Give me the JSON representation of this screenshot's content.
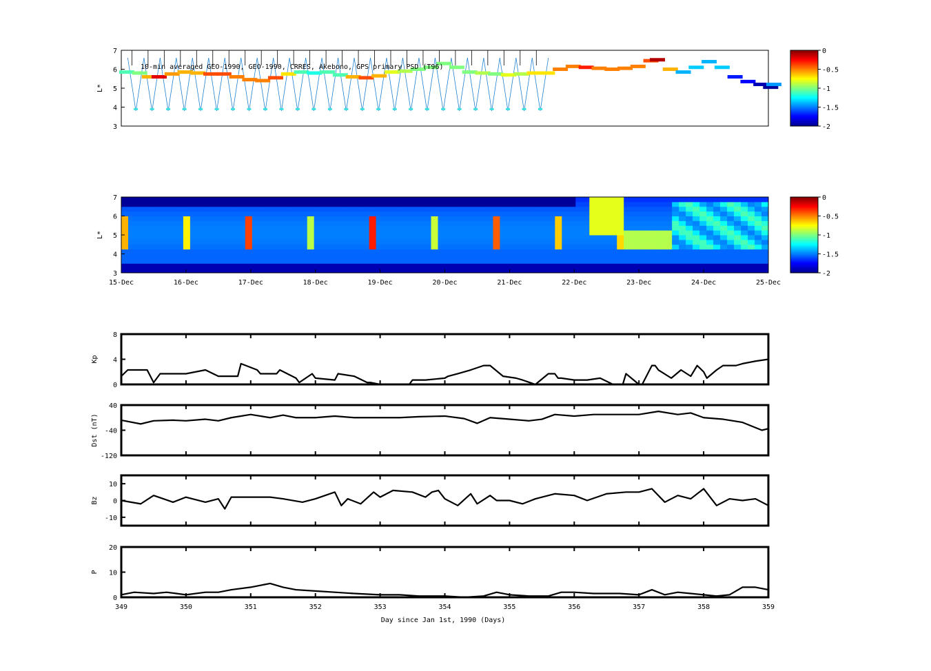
{
  "chart_data": [
    {
      "type": "scatter",
      "panel": "psd-observations",
      "title": "10-min averaged GEO-1990, GEO-1990, CRRES, Akebono, GPS  primary PSD (T96)",
      "ylabel": "L*",
      "ylim": [
        3,
        7
      ],
      "yticks": [
        3,
        4,
        5,
        6,
        7
      ],
      "xlim": [
        349,
        359
      ],
      "colorbar": {
        "ticks": [
          "0",
          "-0.5",
          "-1",
          "-1.5",
          "-2"
        ],
        "range": [
          -2,
          0
        ],
        "colormap": "jet"
      },
      "series": [
        {
          "points": [
            [
              349.0,
              5.85,
              -1.1
            ],
            [
              349.2,
              5.8,
              -1.0
            ],
            [
              349.35,
              5.6,
              -0.6
            ],
            [
              349.5,
              5.6,
              -0.2
            ],
            [
              349.7,
              5.75,
              -0.55
            ],
            [
              349.9,
              5.85,
              -0.6
            ],
            [
              350.1,
              5.8,
              -0.6
            ],
            [
              350.3,
              5.75,
              -0.4
            ],
            [
              350.5,
              5.75,
              -0.4
            ],
            [
              350.7,
              5.6,
              -0.5
            ],
            [
              350.9,
              5.45,
              -0.5
            ],
            [
              351.1,
              5.4,
              -0.5
            ],
            [
              351.3,
              5.55,
              -0.4
            ],
            [
              351.5,
              5.75,
              -0.7
            ],
            [
              351.7,
              5.85,
              -1.1
            ],
            [
              351.9,
              5.8,
              -1.2
            ],
            [
              352.1,
              5.85,
              -1.1
            ],
            [
              352.3,
              5.7,
              -1.1
            ],
            [
              352.5,
              5.6,
              -0.6
            ],
            [
              352.7,
              5.55,
              -0.4
            ],
            [
              352.9,
              5.65,
              -0.6
            ],
            [
              353.1,
              5.85,
              -0.8
            ],
            [
              353.3,
              5.9,
              -0.9
            ],
            [
              353.5,
              6.0,
              -1.0
            ],
            [
              353.7,
              6.1,
              -1.0
            ],
            [
              353.9,
              6.3,
              -1.0
            ],
            [
              354.1,
              6.1,
              -1.0
            ],
            [
              354.3,
              5.85,
              -1.0
            ],
            [
              354.5,
              5.8,
              -0.9
            ],
            [
              354.7,
              5.75,
              -1.0
            ],
            [
              354.9,
              5.7,
              -0.8
            ],
            [
              355.1,
              5.75,
              -0.9
            ],
            [
              355.3,
              5.8,
              -0.7
            ],
            [
              355.5,
              5.8,
              -0.7
            ],
            [
              355.7,
              6.0,
              -0.5
            ],
            [
              355.9,
              6.15,
              -0.5
            ],
            [
              356.1,
              6.1,
              -0.3
            ],
            [
              356.3,
              6.05,
              -0.5
            ],
            [
              356.5,
              6.0,
              -0.5
            ],
            [
              356.7,
              6.05,
              -0.5
            ],
            [
              356.9,
              6.15,
              -0.5
            ],
            [
              357.1,
              6.45,
              -0.4
            ],
            [
              357.2,
              6.5,
              -0.1
            ],
            [
              357.4,
              6.0,
              -0.6
            ],
            [
              357.6,
              5.85,
              -1.4
            ],
            [
              357.8,
              6.1,
              -1.35
            ],
            [
              358.0,
              6.4,
              -1.4
            ],
            [
              358.2,
              6.1,
              -1.35
            ],
            [
              358.4,
              5.6,
              -1.7
            ],
            [
              358.6,
              5.35,
              -1.75
            ],
            [
              358.8,
              5.2,
              -1.9
            ],
            [
              358.95,
              5.05,
              -1.95
            ],
            [
              359.0,
              5.2,
              -1.45
            ]
          ]
        }
      ]
    },
    {
      "type": "heatmap",
      "panel": "psd-reanalysis",
      "ylabel": "L*",
      "ylim": [
        3,
        7
      ],
      "yticks": [
        3,
        4,
        5,
        6,
        7
      ],
      "xtick_labels": [
        "15-Dec",
        "16-Dec",
        "17-Dec",
        "18-Dec",
        "19-Dec",
        "20-Dec",
        "21-Dec",
        "22-Dec",
        "23-Dec",
        "24-Dec",
        "25-Dec"
      ],
      "colorbar": {
        "ticks": [
          "0",
          "-0.5",
          "-1",
          "-1.5",
          "-2"
        ],
        "range": [
          -2,
          0
        ],
        "colormap": "jet"
      }
    },
    {
      "type": "line",
      "panel": "kp",
      "ylabel": "Kp",
      "ylim": [
        0,
        8
      ],
      "yticks": [
        0,
        4,
        8
      ],
      "xlim": [
        349,
        359
      ],
      "series": [
        {
          "color": "#000000",
          "x": [
            349.0,
            349.1,
            349.2,
            349.4,
            349.45,
            349.5,
            349.55,
            349.6,
            349.95,
            350.0,
            350.3,
            350.5,
            350.8,
            350.85,
            351.1,
            351.15,
            351.4,
            351.45,
            351.7,
            351.75,
            351.95,
            352.0,
            352.3,
            352.35,
            352.6,
            352.8,
            352.85,
            353.0,
            353.1,
            353.2,
            353.45,
            353.5,
            353.7,
            354.0,
            354.05,
            354.2,
            354.4,
            354.6,
            354.7,
            354.9,
            355.1,
            355.2,
            355.4,
            355.6,
            355.7,
            355.75,
            355.8,
            356.0,
            356.2,
            356.4,
            356.6,
            356.7,
            356.75,
            356.8,
            357.0,
            357.05,
            357.2,
            357.25,
            357.3,
            357.5,
            357.65,
            357.8,
            357.9,
            358.0,
            358.05,
            358.2,
            358.3,
            358.5,
            358.6,
            358.8,
            359.0
          ],
          "y": [
            1.3,
            2.3,
            2.3,
            2.3,
            1.3,
            0.3,
            1.0,
            1.7,
            1.7,
            1.7,
            2.3,
            1.3,
            1.3,
            3.3,
            2.3,
            1.7,
            1.7,
            2.3,
            1.0,
            0.3,
            1.7,
            1.0,
            0.7,
            1.7,
            1.3,
            0.3,
            0.3,
            0.0,
            0.0,
            0.0,
            0.0,
            0.7,
            0.7,
            1.0,
            1.3,
            1.7,
            2.3,
            3.0,
            3.0,
            1.3,
            1.0,
            0.7,
            0.0,
            1.7,
            1.7,
            1.0,
            1.0,
            0.7,
            0.7,
            1.0,
            0.0,
            0.0,
            0.0,
            1.7,
            0.0,
            0.0,
            3.0,
            3.0,
            2.3,
            1.0,
            2.3,
            1.3,
            3.0,
            2.0,
            1.0,
            2.3,
            3.0,
            3.0,
            3.3,
            3.7,
            4.0
          ]
        }
      ]
    },
    {
      "type": "line",
      "panel": "dst",
      "ylabel": "Dst (nT)",
      "ylim": [
        -120,
        40
      ],
      "yticks": [
        -120,
        -40,
        40
      ],
      "xlim": [
        349,
        359
      ],
      "series": [
        {
          "color": "#000000",
          "x": [
            349.0,
            349.3,
            349.5,
            349.8,
            350.0,
            350.3,
            350.5,
            350.7,
            351.0,
            351.3,
            351.5,
            351.7,
            352.0,
            352.3,
            352.6,
            353.0,
            353.3,
            353.6,
            354.0,
            354.3,
            354.5,
            354.7,
            355.0,
            355.3,
            355.5,
            355.7,
            356.0,
            356.3,
            356.6,
            357.0,
            357.3,
            357.6,
            357.8,
            358.0,
            358.3,
            358.6,
            358.9,
            359.0
          ],
          "y": [
            -8,
            -20,
            -10,
            -8,
            -10,
            -5,
            -10,
            0,
            10,
            0,
            8,
            0,
            0,
            5,
            0,
            0,
            0,
            3,
            5,
            -3,
            -18,
            0,
            -5,
            -10,
            -5,
            10,
            5,
            10,
            10,
            10,
            20,
            10,
            15,
            0,
            -5,
            -15,
            -40,
            -35
          ]
        }
      ]
    },
    {
      "type": "line",
      "panel": "bz",
      "ylabel": "Bz",
      "ylim": [
        -15,
        15
      ],
      "yticks": [
        -10,
        0,
        10
      ],
      "xlim": [
        349,
        359
      ],
      "series": [
        {
          "color": "#000000",
          "x": [
            349.0,
            349.3,
            349.5,
            349.8,
            350.0,
            350.3,
            350.5,
            350.6,
            350.7,
            350.8,
            351.0,
            351.3,
            351.5,
            351.8,
            352.0,
            352.3,
            352.4,
            352.5,
            352.7,
            352.9,
            353.0,
            353.2,
            353.5,
            353.7,
            353.8,
            353.9,
            354.0,
            354.2,
            354.4,
            354.5,
            354.7,
            354.8,
            355.0,
            355.2,
            355.4,
            355.7,
            356.0,
            356.2,
            356.5,
            356.8,
            357.0,
            357.2,
            357.4,
            357.6,
            357.8,
            358.0,
            358.2,
            358.4,
            358.6,
            358.8,
            359.0
          ],
          "y": [
            0,
            -2,
            3,
            -1,
            2,
            -1,
            1,
            -5,
            2,
            2,
            2,
            2,
            1,
            -1,
            1,
            5,
            -3,
            1,
            -2,
            5,
            2,
            6,
            5,
            2,
            5,
            6,
            1,
            -3,
            4,
            -2,
            3,
            0,
            0,
            -2,
            1,
            4,
            3,
            0,
            4,
            5,
            5,
            7,
            -1,
            3,
            1,
            7,
            -3,
            1,
            0,
            1,
            -3
          ]
        }
      ]
    },
    {
      "type": "line",
      "panel": "p",
      "ylabel": "P",
      "ylim": [
        0,
        20
      ],
      "yticks": [
        0,
        10,
        20
      ],
      "xlim": [
        349,
        359
      ],
      "xticks": [
        349,
        350,
        351,
        352,
        353,
        354,
        355,
        356,
        357,
        358,
        359
      ],
      "xlabel": "Day since Jan 1st, 1990 (Days)",
      "series": [
        {
          "color": "#000000",
          "x": [
            349.0,
            349.2,
            349.5,
            349.7,
            350.0,
            350.3,
            350.5,
            350.7,
            351.0,
            351.2,
            351.3,
            351.5,
            351.7,
            352.0,
            352.3,
            352.6,
            353.0,
            353.3,
            353.6,
            354.0,
            354.3,
            354.6,
            354.8,
            355.0,
            355.3,
            355.6,
            355.8,
            356.0,
            356.3,
            356.7,
            357.0,
            357.2,
            357.4,
            357.6,
            357.8,
            358.0,
            358.2,
            358.4,
            358.6,
            358.8,
            359.0
          ],
          "y": [
            1,
            2,
            1.5,
            2,
            1,
            2,
            2,
            3,
            4,
            5,
            5.5,
            4,
            3,
            2.5,
            2,
            1.5,
            1,
            1,
            0.5,
            0.5,
            0,
            0.5,
            2,
            1,
            0.5,
            0.5,
            2,
            2,
            1.5,
            1.5,
            1,
            3,
            1,
            2,
            1.5,
            1,
            0.5,
            1,
            4,
            4,
            3
          ]
        }
      ]
    }
  ]
}
